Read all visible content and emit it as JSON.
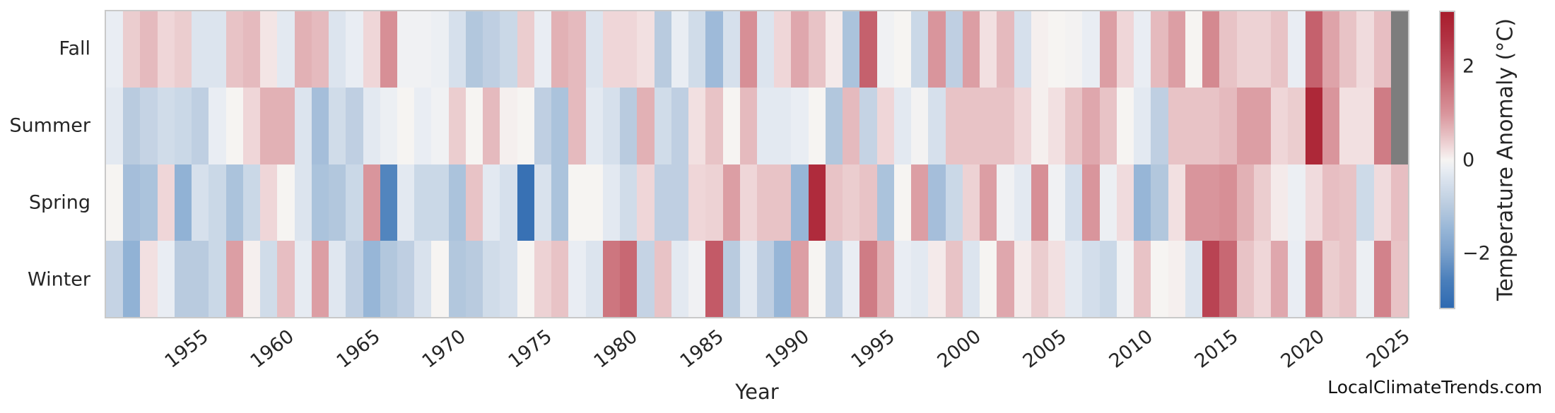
{
  "page": {
    "background": "#ffffff"
  },
  "watermark": {
    "text": "LocalClimateTrends.com"
  },
  "chart_data": {
    "type": "heatmap",
    "xlabel": "Year",
    "x_start": 1950,
    "x_end": 2025,
    "x_ticks": [
      "1955",
      "1960",
      "1965",
      "1970",
      "1975",
      "1980",
      "1985",
      "1990",
      "1995",
      "2000",
      "2005",
      "2010",
      "2015",
      "2020",
      "2025"
    ],
    "x_tick_years": [
      1955,
      1960,
      1965,
      1970,
      1975,
      1980,
      1985,
      1990,
      1995,
      2000,
      2005,
      2010,
      2015,
      2020,
      2025
    ],
    "grid": false,
    "legend_position": "right-colorbar",
    "rows": [
      {
        "name": "Fall",
        "values": [
          -0.2,
          0.4,
          0.6,
          0.3,
          0.4,
          -0.4,
          -0.4,
          0.5,
          0.6,
          0.15,
          -0.3,
          0.7,
          0.6,
          -0.4,
          -0.2,
          0.3,
          1.1,
          -0.1,
          -0.1,
          -0.15,
          -0.5,
          -1.1,
          -0.9,
          -0.7,
          0.4,
          -0.2,
          0.7,
          0.6,
          -0.4,
          0.3,
          0.3,
          0.2,
          -1.0,
          -0.2,
          -0.6,
          -1.4,
          -0.5,
          1.1,
          -0.4,
          0.3,
          0.8,
          0.5,
          0.1,
          -1.2,
          1.8,
          -0.1,
          0.0,
          -0.7,
          1.0,
          -0.9,
          0.9,
          0.2,
          0.6,
          -0.5,
          0.05,
          0.0,
          -0.05,
          -0.2,
          0.9,
          0.3,
          -0.2,
          0.6,
          0.9,
          0.0,
          1.2,
          0.5,
          0.35,
          0.35,
          0.5,
          -0.2,
          1.8,
          0.85,
          0.5,
          0.25,
          0.55,
          null
        ]
      },
      {
        "name": "Summer",
        "values": [
          -0.3,
          -1.0,
          -0.8,
          -0.6,
          -0.7,
          -0.9,
          -0.2,
          0.0,
          0.3,
          0.7,
          0.7,
          -0.4,
          -1.3,
          -0.6,
          -0.9,
          -0.3,
          -0.15,
          0.0,
          -0.2,
          -0.1,
          0.4,
          0.0,
          0.6,
          0.05,
          0.0,
          -0.9,
          -1.2,
          0.6,
          -0.3,
          -0.5,
          -1.0,
          0.7,
          -0.6,
          -0.9,
          0.2,
          0.5,
          0.0,
          0.6,
          -0.3,
          -0.3,
          -0.2,
          0.0,
          -1.1,
          0.6,
          -0.8,
          0.3,
          -0.3,
          -0.05,
          -0.5,
          0.5,
          0.5,
          0.5,
          0.5,
          0.3,
          0.05,
          0.2,
          0.5,
          0.8,
          0.5,
          0.0,
          -0.3,
          -0.9,
          0.5,
          0.5,
          0.5,
          0.6,
          0.9,
          0.9,
          0.3,
          0.4,
          2.9,
          1.0,
          0.2,
          0.2,
          1.4,
          null
        ]
      },
      {
        "name": "Spring",
        "values": [
          0.0,
          -1.3,
          -1.2,
          0.3,
          -1.6,
          -0.5,
          -0.7,
          -1.2,
          -0.7,
          0.3,
          0.0,
          -0.4,
          -1.2,
          -1.1,
          -0.7,
          1.0,
          -2.5,
          -0.3,
          -0.7,
          -0.7,
          -1.2,
          0.5,
          -0.3,
          -0.5,
          -3.0,
          -0.45,
          -1.2,
          0.0,
          0.0,
          -0.3,
          -0.6,
          0.3,
          -0.9,
          -0.9,
          0.3,
          0.35,
          0.9,
          0.3,
          0.5,
          0.5,
          -1.5,
          2.8,
          0.5,
          0.4,
          0.5,
          -1.2,
          0.0,
          0.9,
          -1.3,
          -0.7,
          0.35,
          0.9,
          -0.1,
          -0.3,
          1.1,
          -0.1,
          -0.55,
          1.0,
          -0.15,
          0.25,
          -1.5,
          -1.1,
          0.2,
          1.0,
          1.0,
          1.1,
          0.7,
          0.4,
          0.1,
          -0.15,
          0.25,
          0.55,
          0.5,
          -0.65,
          0.25,
          0.55
        ]
      },
      {
        "name": "Winter",
        "values": [
          -0.8,
          -1.6,
          0.2,
          -0.2,
          -1.0,
          -1.0,
          -0.7,
          0.9,
          0.05,
          -0.6,
          0.55,
          -0.25,
          0.9,
          -0.35,
          -0.9,
          -1.5,
          -1.1,
          -0.9,
          -0.45,
          0.0,
          -1.1,
          -1.0,
          -0.6,
          -0.5,
          0.0,
          0.35,
          0.5,
          -0.2,
          -0.4,
          1.5,
          1.7,
          -0.8,
          0.5,
          -0.3,
          -0.1,
          1.9,
          -1.0,
          -0.3,
          -0.9,
          -1.5,
          0.9,
          0.0,
          -0.9,
          -0.2,
          1.4,
          0.7,
          -0.2,
          -0.3,
          0.1,
          0.5,
          -0.4,
          0.0,
          0.8,
          0.1,
          0.4,
          0.2,
          -0.3,
          -0.55,
          -0.7,
          -0.1,
          0.5,
          0.0,
          0.05,
          -0.4,
          2.3,
          1.7,
          0.5,
          0.3,
          0.8,
          -0.2,
          1.2,
          0.4,
          0.5,
          -0.15,
          1.3,
          0.5
        ]
      }
    ],
    "missing_color": "#7d7d7d",
    "colorbar": {
      "label": "Temperature Anomaly (°C)",
      "ticks": [
        {
          "label": "2",
          "value": 2
        },
        {
          "label": "0",
          "value": 0
        },
        {
          "label": "−2",
          "value": -2
        }
      ],
      "vmin": -3.2,
      "vmax": 3.2
    },
    "colormap_stops": [
      [
        -3.2,
        "#2f6ab1"
      ],
      [
        -2.6,
        "#4a7fbb"
      ],
      [
        -2.0,
        "#7aa0cb"
      ],
      [
        -1.5,
        "#97b6d7"
      ],
      [
        -1.0,
        "#b9cbdf"
      ],
      [
        -0.5,
        "#d6e0ec"
      ],
      [
        -0.2,
        "#e9edf3"
      ],
      [
        0.0,
        "#f6f4f2"
      ],
      [
        0.2,
        "#f2e0e1"
      ],
      [
        0.5,
        "#e8c3c6"
      ],
      [
        1.0,
        "#d9959c"
      ],
      [
        1.5,
        "#cd767f"
      ],
      [
        2.0,
        "#c05361"
      ],
      [
        2.6,
        "#b23344"
      ],
      [
        3.2,
        "#a81c2c"
      ]
    ]
  }
}
